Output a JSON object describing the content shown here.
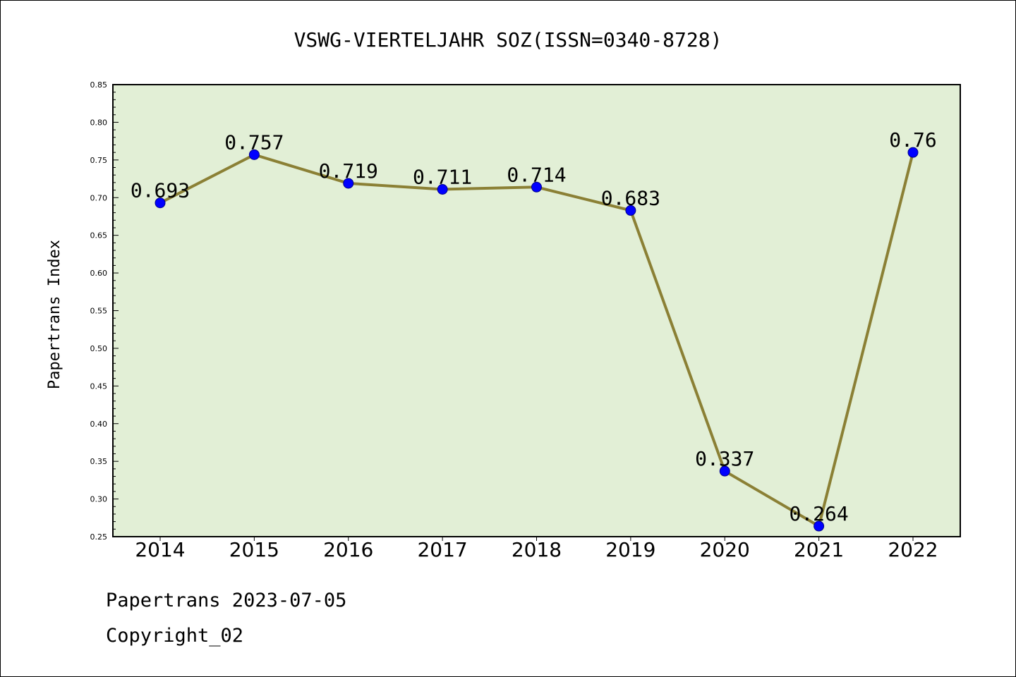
{
  "chart_data": {
    "type": "line",
    "title": "VSWG-VIERTELJAHR SOZ(ISSN=0340-8728)",
    "ylabel": "Papertrans Index",
    "xlabel": "",
    "categories": [
      "2014",
      "2015",
      "2016",
      "2017",
      "2018",
      "2019",
      "2020",
      "2021",
      "2022"
    ],
    "values": [
      0.693,
      0.757,
      0.719,
      0.711,
      0.714,
      0.683,
      0.337,
      0.264,
      0.76
    ],
    "value_labels": [
      "0.693",
      "0.757",
      "0.719",
      "0.711",
      "0.714",
      "0.683",
      "0.337",
      "0.264",
      "0.76"
    ],
    "ylim": [
      0.25,
      0.85
    ],
    "yticks": [
      "0.25",
      "0.30",
      "0.35",
      "0.40",
      "0.45",
      "0.50",
      "0.55",
      "0.60",
      "0.65",
      "0.70",
      "0.75",
      "0.80",
      "0.85"
    ],
    "grid": false,
    "colors": {
      "line": "#8b8035",
      "marker": "#0000ff",
      "plot_background": "#e2efd6"
    }
  },
  "footer": {
    "line1": "Papertrans 2023-07-05",
    "line2": "Copyright_02"
  }
}
